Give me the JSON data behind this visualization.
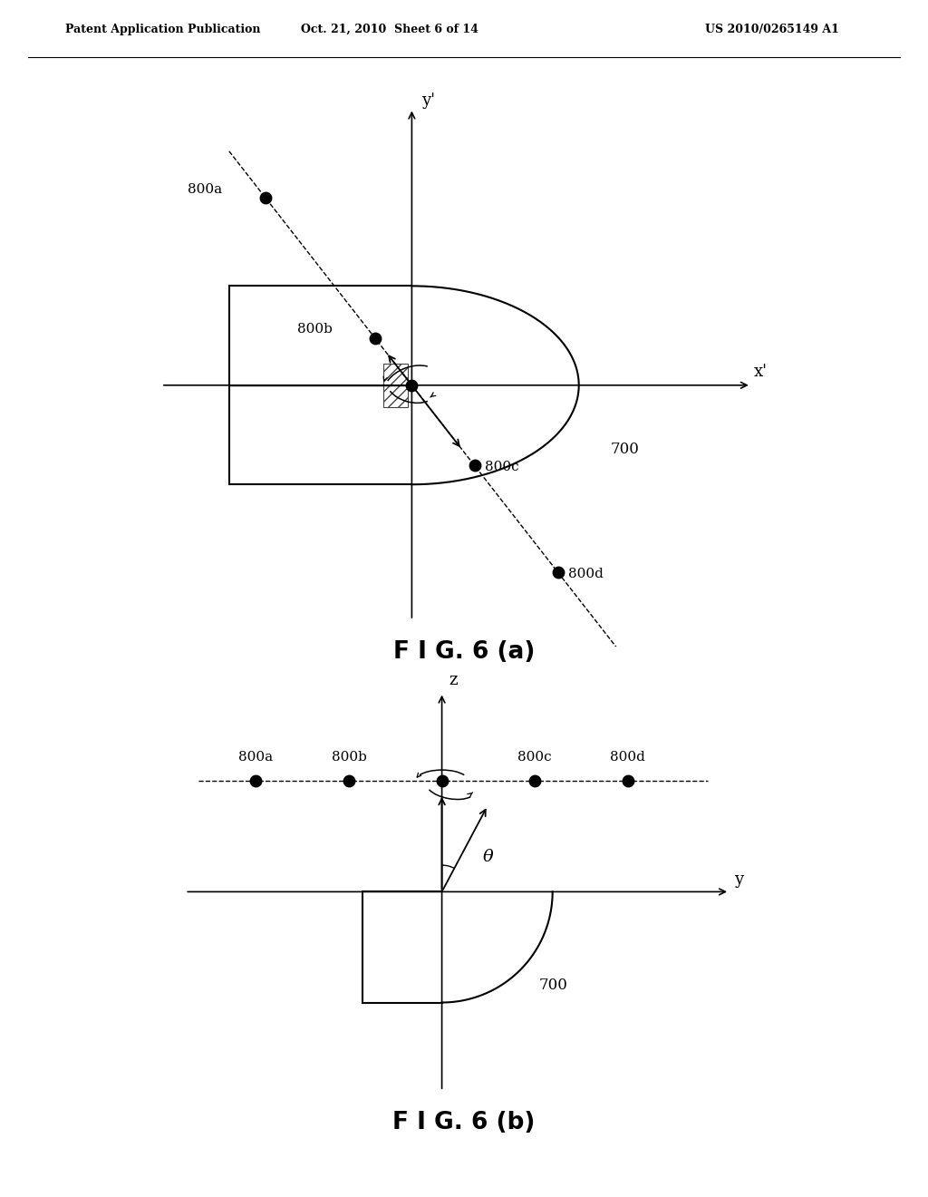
{
  "header_left": "Patent Application Publication",
  "header_mid": "Oct. 21, 2010  Sheet 6 of 14",
  "header_right": "US 2010/0265149 A1",
  "fig_a_label": "F I G. 6 (a)",
  "fig_b_label": "F I G. 6 (b)",
  "bg_color": "#ffffff",
  "line_color": "#000000",
  "label_800a": "800a",
  "label_800b": "800b",
  "label_800c": "800c",
  "label_800d": "800d",
  "label_700": "700",
  "label_xprime": "x'",
  "label_yprime": "y'",
  "label_y": "y",
  "label_z": "z",
  "label_theta": "θ"
}
